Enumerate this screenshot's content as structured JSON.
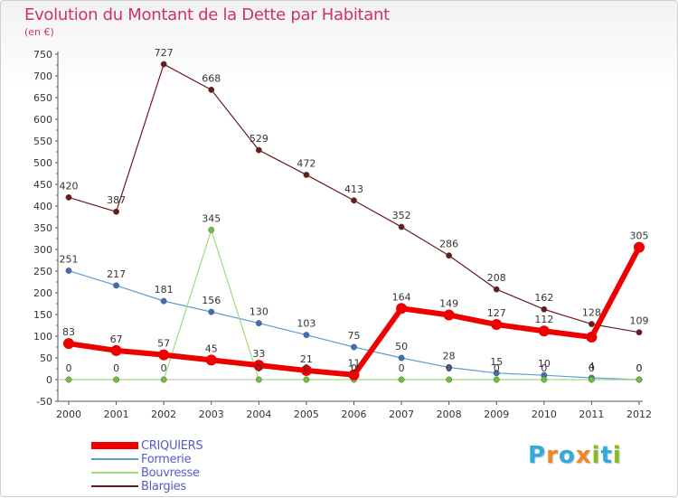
{
  "title": "Evolution du Montant de la Dette par Habitant",
  "subtitle": "(en €)",
  "logo": {
    "letters": [
      "P",
      "r",
      "o",
      "x",
      "i",
      "t",
      "i"
    ],
    "colors": [
      "#33aadd",
      "#ee8822",
      "#33aadd",
      "#ee8822",
      "#88bb22",
      "#33aadd",
      "#88bb22"
    ]
  },
  "chart_data": {
    "type": "line",
    "title": "Evolution du Montant de la Dette par Habitant",
    "ylabel": "(en €)",
    "xlabel": "",
    "ylim": [
      -50,
      750
    ],
    "yticks": [
      -50,
      0,
      50,
      100,
      150,
      200,
      250,
      300,
      350,
      400,
      450,
      500,
      550,
      600,
      650,
      700,
      750
    ],
    "grid": false,
    "legend_position": "bottom-left",
    "x": [
      "2000",
      "2001",
      "2002",
      "2003",
      "2004",
      "2005",
      "2006",
      "2007",
      "2008",
      "2009",
      "2010",
      "2011",
      "2012"
    ],
    "series": [
      {
        "name": "Blargies",
        "color": "#6b1a1a",
        "width": 1.2,
        "values": [
          420,
          387,
          727,
          668,
          529,
          472,
          413,
          352,
          286,
          208,
          162,
          128,
          109
        ]
      },
      {
        "name": "Formerie",
        "color": "#5b9bd5",
        "marker": "#3d6fb8",
        "width": 1.2,
        "values": [
          251,
          217,
          181,
          156,
          130,
          103,
          75,
          50,
          28,
          15,
          10,
          4,
          0
        ]
      },
      {
        "name": "Bouvresse",
        "color": "#9fdc7a",
        "marker": "#6cc23a",
        "width": 1.2,
        "values": [
          0,
          0,
          0,
          345,
          0,
          0,
          0,
          0,
          0,
          0,
          0,
          0,
          0
        ]
      },
      {
        "name": "CRIQUIERS",
        "color": "#ee0000",
        "width": 6,
        "values": [
          83,
          67,
          57,
          45,
          33,
          21,
          11,
          164,
          149,
          127,
          112,
          98,
          305
        ]
      }
    ],
    "data_labels": [
      {
        "series": "Blargies",
        "values": [
          "420",
          "387",
          "727",
          "668",
          "529",
          "472",
          "413",
          "352",
          "286",
          "208",
          "162",
          "128",
          "109"
        ]
      },
      {
        "series": "Formerie",
        "values": [
          "251",
          "217",
          "181",
          "156",
          "130",
          "103",
          "75",
          "50",
          "28",
          "15",
          "10",
          "4",
          "0"
        ]
      },
      {
        "series": "Bouvresse",
        "values": [
          "0",
          "0",
          "0",
          "345",
          "0",
          "0",
          "0",
          "0",
          "0",
          "0",
          "0",
          "0",
          "0"
        ]
      },
      {
        "series": "CRIQUIERS",
        "values": [
          "83",
          "67",
          "57",
          "45",
          "33",
          "21",
          "11",
          "164",
          "149",
          "127",
          "112",
          "",
          "305"
        ]
      }
    ],
    "legend": [
      "CRIQUIERS",
      "Formerie",
      "Bouvresse",
      "Blargies"
    ]
  }
}
